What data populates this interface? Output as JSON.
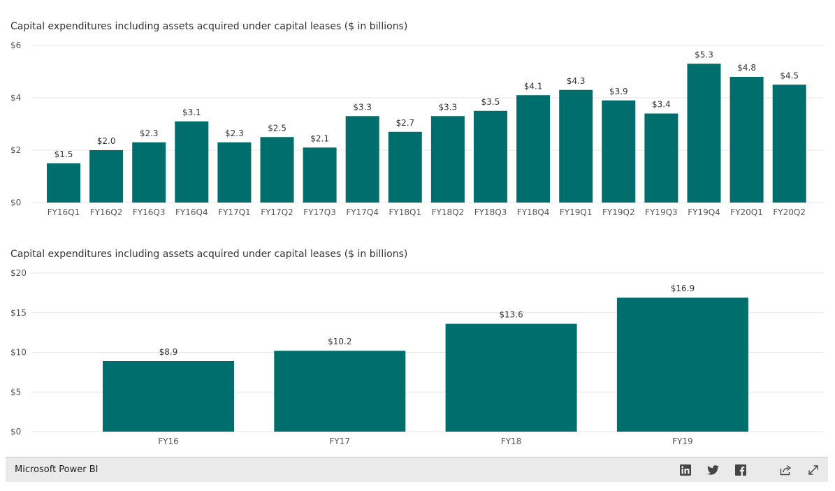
{
  "charts": [
    {
      "type": "bar",
      "title": "Capital expenditures including assets acquired under capital leases ($ in billions)",
      "categories": [
        "FY16Q1",
        "FY16Q2",
        "FY16Q3",
        "FY16Q4",
        "FY17Q1",
        "FY17Q2",
        "FY17Q3",
        "FY17Q4",
        "FY18Q1",
        "FY18Q2",
        "FY18Q3",
        "FY18Q4",
        "FY19Q1",
        "FY19Q2",
        "FY19Q3",
        "FY19Q4",
        "FY20Q1",
        "FY20Q2"
      ],
      "values": [
        1.5,
        2.0,
        2.3,
        3.1,
        2.3,
        2.5,
        2.1,
        3.3,
        2.7,
        3.3,
        3.5,
        4.1,
        4.3,
        3.9,
        3.4,
        5.3,
        4.8,
        4.5
      ],
      "value_labels": [
        "$1.5",
        "$2.0",
        "$2.3",
        "$3.1",
        "$2.3",
        "$2.5",
        "$2.1",
        "$3.3",
        "$2.7",
        "$3.3",
        "$3.5",
        "$4.1",
        "$4.3",
        "$3.9",
        "$3.4",
        "$5.3",
        "$4.8",
        "$4.5"
      ],
      "yticks": [
        0,
        2,
        4,
        6
      ],
      "ytick_labels": [
        "$0",
        "$2",
        "$4",
        "$6"
      ],
      "ylim": [
        0,
        6
      ],
      "grid": true,
      "color": "#006E6C"
    },
    {
      "type": "bar",
      "title": "Capital expenditures including assets acquired under capital leases ($ in billions)",
      "categories": [
        "FY16",
        "FY17",
        "FY18",
        "FY19"
      ],
      "values": [
        8.9,
        10.2,
        13.6,
        16.9
      ],
      "value_labels": [
        "$8.9",
        "$10.2",
        "$13.6",
        "$16.9"
      ],
      "yticks": [
        0,
        5,
        10,
        15,
        20
      ],
      "ytick_labels": [
        "$0",
        "$5",
        "$10",
        "$15",
        "$20"
      ],
      "ylim": [
        0,
        20
      ],
      "grid": true,
      "color": "#006E6C"
    }
  ],
  "footer": {
    "brand": "Microsoft Power BI",
    "icons": [
      "linkedin-icon",
      "twitter-icon",
      "facebook-icon",
      "share-icon",
      "expand-icon"
    ]
  }
}
